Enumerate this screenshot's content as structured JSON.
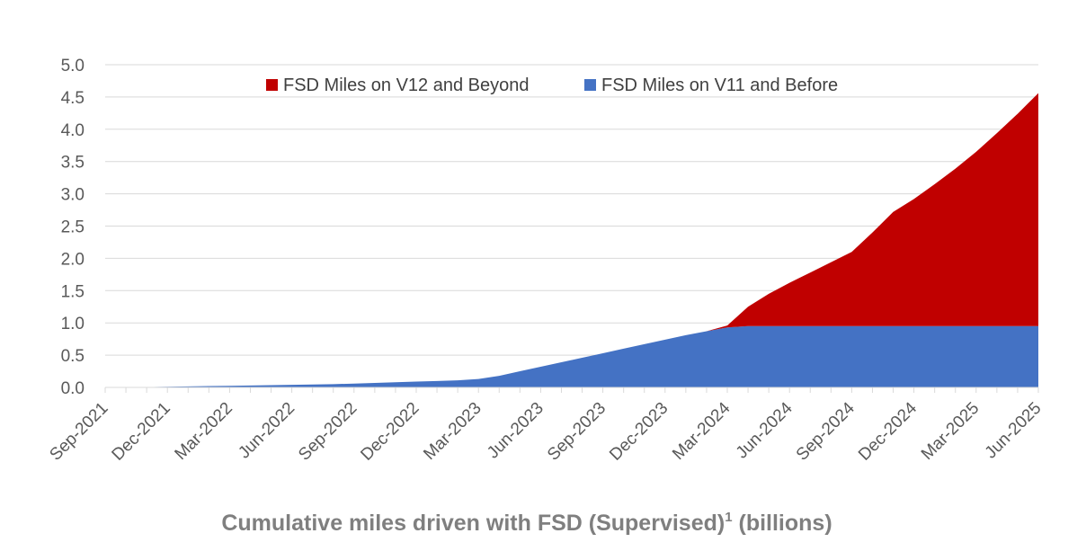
{
  "chart_data": {
    "type": "area",
    "stacked": true,
    "title": "Cumulative miles driven with FSD (Supervised)",
    "title_superscript": "1",
    "title_suffix": " (billions)",
    "xlabel": "",
    "ylabel": "",
    "ylim": [
      0,
      5.0
    ],
    "y_ticks": [
      "0.0",
      "0.5",
      "1.0",
      "1.5",
      "2.0",
      "2.5",
      "3.0",
      "3.5",
      "4.0",
      "4.5",
      "5.0"
    ],
    "x_ticks": [
      "Sep-2021",
      "Dec-2021",
      "Mar-2022",
      "Jun-2022",
      "Sep-2022",
      "Dec-2022",
      "Mar-2023",
      "Jun-2023",
      "Sep-2023",
      "Dec-2023",
      "Mar-2024",
      "Jun-2024",
      "Sep-2024",
      "Dec-2024",
      "Mar-2025",
      "Jun-2025"
    ],
    "grid": true,
    "legend_position": "top",
    "x": [
      "Sep-2021",
      "Oct-2021",
      "Nov-2021",
      "Dec-2021",
      "Jan-2022",
      "Feb-2022",
      "Mar-2022",
      "Apr-2022",
      "May-2022",
      "Jun-2022",
      "Jul-2022",
      "Aug-2022",
      "Sep-2022",
      "Oct-2022",
      "Nov-2022",
      "Dec-2022",
      "Jan-2023",
      "Feb-2023",
      "Mar-2023",
      "Apr-2023",
      "May-2023",
      "Jun-2023",
      "Jul-2023",
      "Aug-2023",
      "Sep-2023",
      "Oct-2023",
      "Nov-2023",
      "Dec-2023",
      "Jan-2024",
      "Feb-2024",
      "Mar-2024",
      "Apr-2024",
      "May-2024",
      "Jun-2024",
      "Jul-2024",
      "Aug-2024",
      "Sep-2024",
      "Oct-2024",
      "Nov-2024",
      "Dec-2024",
      "Jan-2025",
      "Feb-2025",
      "Mar-2025",
      "Apr-2025",
      "May-2025",
      "Jun-2025"
    ],
    "series": [
      {
        "name": "FSD Miles on V11 and Before",
        "color": "#4472c4",
        "values": [
          0.0,
          0.0,
          0.005,
          0.01,
          0.015,
          0.02,
          0.025,
          0.03,
          0.035,
          0.04,
          0.045,
          0.05,
          0.06,
          0.07,
          0.08,
          0.09,
          0.1,
          0.11,
          0.13,
          0.18,
          0.25,
          0.32,
          0.39,
          0.46,
          0.53,
          0.6,
          0.67,
          0.74,
          0.81,
          0.87,
          0.93,
          0.95,
          0.95,
          0.95,
          0.95,
          0.95,
          0.95,
          0.95,
          0.95,
          0.95,
          0.95,
          0.95,
          0.95,
          0.95,
          0.95,
          0.95
        ]
      },
      {
        "name": "FSD Miles on V12 and Beyond",
        "color": "#c00000",
        "values": [
          0,
          0,
          0,
          0,
          0,
          0,
          0,
          0,
          0,
          0,
          0,
          0,
          0,
          0,
          0,
          0,
          0,
          0,
          0,
          0,
          0,
          0,
          0,
          0,
          0,
          0,
          0,
          0,
          0,
          0,
          0.03,
          0.3,
          0.5,
          0.67,
          0.83,
          0.99,
          1.15,
          1.45,
          1.77,
          1.97,
          2.2,
          2.44,
          2.7,
          2.99,
          3.29,
          3.61
        ]
      }
    ]
  }
}
